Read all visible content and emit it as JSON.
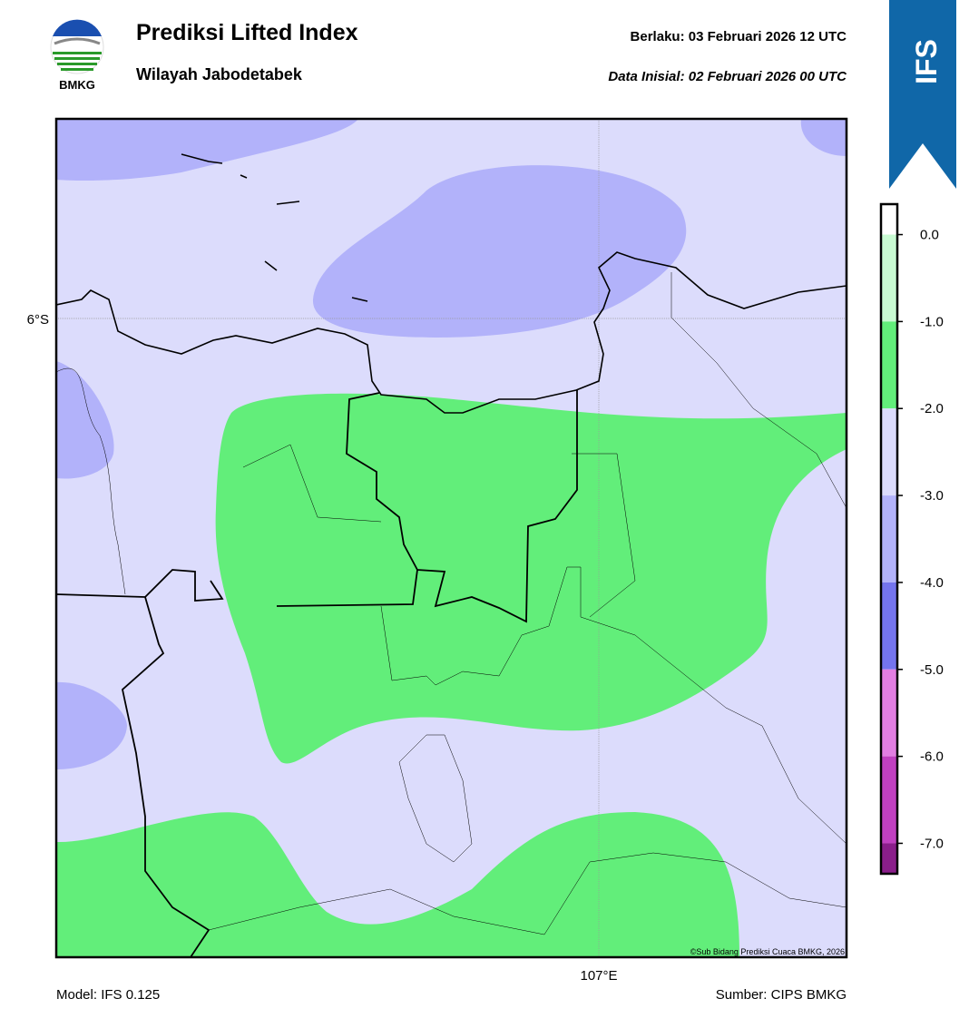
{
  "header": {
    "title": "Prediksi Lifted Index",
    "subtitle": "Wilayah Jabodetabek",
    "valid": "Berlaku:  03 Februari 2026 12 UTC",
    "init": "Data Inisial:  02 Februari 2026 00 UTC",
    "logo": "BMKG",
    "badge": "IFS"
  },
  "map": {
    "lat_label": "6°S",
    "lon_label": "107°E",
    "credit": "©Sub Bidang Prediksi Cuaca BMKG, 2026"
  },
  "colorbar": {
    "lim": [
      -7.35,
      0.35
    ],
    "ticks": [
      {
        "value": 0,
        "label": "0.0"
      },
      {
        "value": -1,
        "label": "-1.0"
      },
      {
        "value": -2,
        "label": "-2.0"
      },
      {
        "value": -3,
        "label": "-3.0"
      },
      {
        "value": -4,
        "label": "-4.0"
      },
      {
        "value": -5,
        "label": "-5.0"
      },
      {
        "value": -6,
        "label": "-6.0"
      },
      {
        "value": -7,
        "label": "-7.0"
      }
    ],
    "bands": [
      {
        "from": 0.35,
        "to": 0,
        "color": "#ffffff"
      },
      {
        "from": 0,
        "to": -1,
        "color": "#c8fad2"
      },
      {
        "from": -1,
        "to": -2,
        "color": "#62ee7a"
      },
      {
        "from": -2,
        "to": -3,
        "color": "#dcdcfc"
      },
      {
        "from": -3,
        "to": -4,
        "color": "#b2b2fa"
      },
      {
        "from": -4,
        "to": -5,
        "color": "#7474ee"
      },
      {
        "from": -5,
        "to": -6,
        "color": "#e27ee2"
      },
      {
        "from": -6,
        "to": -7,
        "color": "#c040c0"
      },
      {
        "from": -7,
        "to": -7.35,
        "color": "#8a1e8a"
      }
    ]
  },
  "footer": {
    "model": "Model: IFS 0.125",
    "source": "Sumber: CIPS BMKG"
  }
}
